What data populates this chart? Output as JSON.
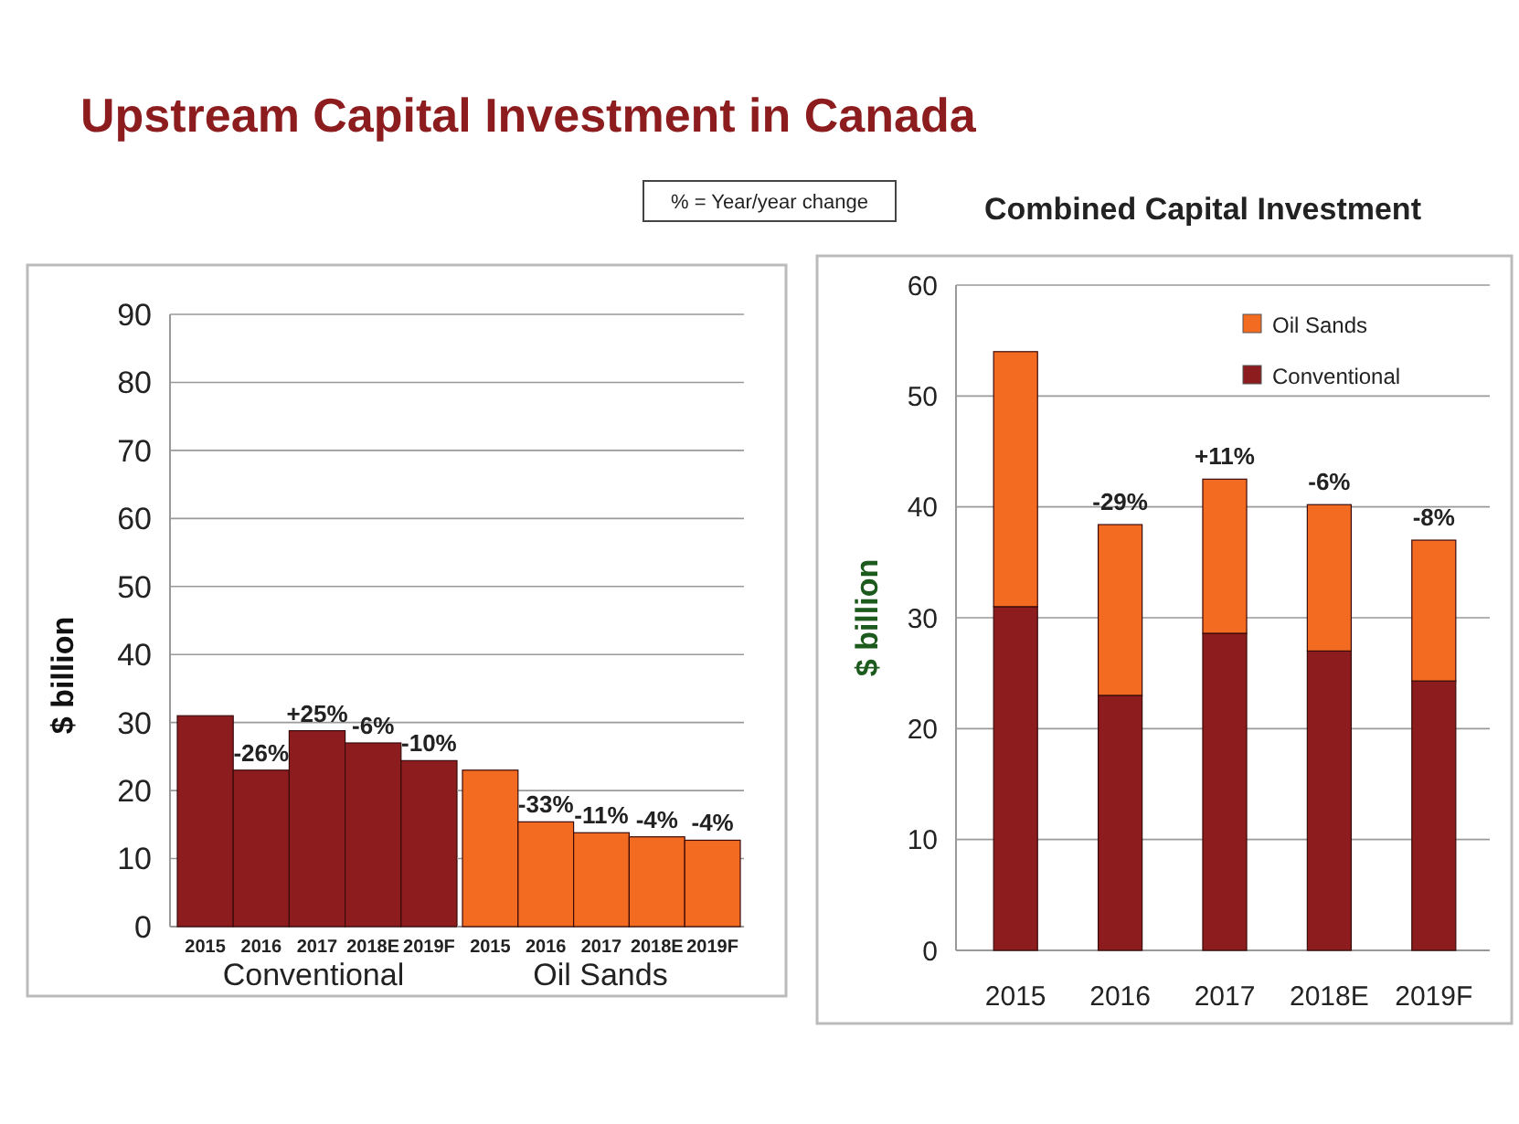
{
  "chart_data": [
    {
      "type": "bar",
      "title": "Upstream Capital Investment in Canada",
      "ylabel": "$ billion",
      "xlabel": "Conventional",
      "categories": [
        "2015",
        "2016",
        "2017",
        "2018E",
        "2019F"
      ],
      "series": [
        {
          "color": "#8c1c1e",
          "values": [
            31,
            23,
            28.8,
            27,
            24.4
          ]
        }
      ],
      "ylim": [
        0,
        90
      ],
      "yticks": [
        0,
        10,
        20,
        30,
        40,
        50,
        60,
        70,
        80,
        90
      ],
      "grid": "y",
      "annotations": [
        "% = Year/year change",
        {
          "text": "-26%",
          "x": "2016",
          "y": 23
        },
        {
          "text": "+25%",
          "x": "2017",
          "y": 28.8
        },
        {
          "text": "-6%",
          "x": "2018E",
          "y": 27
        },
        {
          "text": "-10%",
          "x": "2019F",
          "y": 24.4
        }
      ]
    },
    {
      "type": "bar",
      "xlabel": "Oil Sands",
      "categories": [
        "2015",
        "2016",
        "2017",
        "2018E",
        "2019F"
      ],
      "series": [
        {
          "color": "#f26b21",
          "values": [
            23,
            15.4,
            13.8,
            13.2,
            12.7
          ]
        }
      ],
      "ylim": [
        0,
        90
      ],
      "yticks": [
        0,
        10,
        20,
        30,
        40,
        50,
        60,
        70,
        80,
        90
      ],
      "grid": "y",
      "tick_labels": "x",
      "annotations": [
        {
          "text": "-33%",
          "x": "2016",
          "y": 15.4
        },
        {
          "text": "-11%",
          "x": "2017",
          "y": 13.8
        },
        {
          "text": "-4%",
          "x": "2018E",
          "y": 13.2
        },
        {
          "text": "-4%",
          "x": "2019F",
          "y": 12.7
        }
      ]
    },
    {
      "type": "bar",
      "stacked": true,
      "title": "Combined Capital Investment",
      "ylabel": "$ billion",
      "categories": [
        "2015",
        "2016",
        "2017",
        "2018E",
        "2019F"
      ],
      "series": [
        {
          "name": "Conventional",
          "color": "#8c1c1e",
          "values": [
            31,
            23,
            28.6,
            27,
            24.3
          ]
        },
        {
          "name": "Oil Sands",
          "color": "#f26b21",
          "values": [
            23,
            15.4,
            13.9,
            13.2,
            12.7
          ]
        }
      ],
      "ylim": [
        0,
        60
      ],
      "yticks": [
        0,
        10,
        20,
        30,
        40,
        50,
        60
      ],
      "grid": "y",
      "legend": "top right",
      "annotations": [
        {
          "text": "-29%",
          "x": "2016",
          "y": 38.4
        },
        {
          "text": "+11%",
          "x": "2017",
          "y": 42.5
        },
        {
          "text": "-6%",
          "x": "2018E",
          "y": 40.2
        },
        {
          "text": "-8%",
          "x": "2019F",
          "y": 37
        }
      ]
    }
  ]
}
